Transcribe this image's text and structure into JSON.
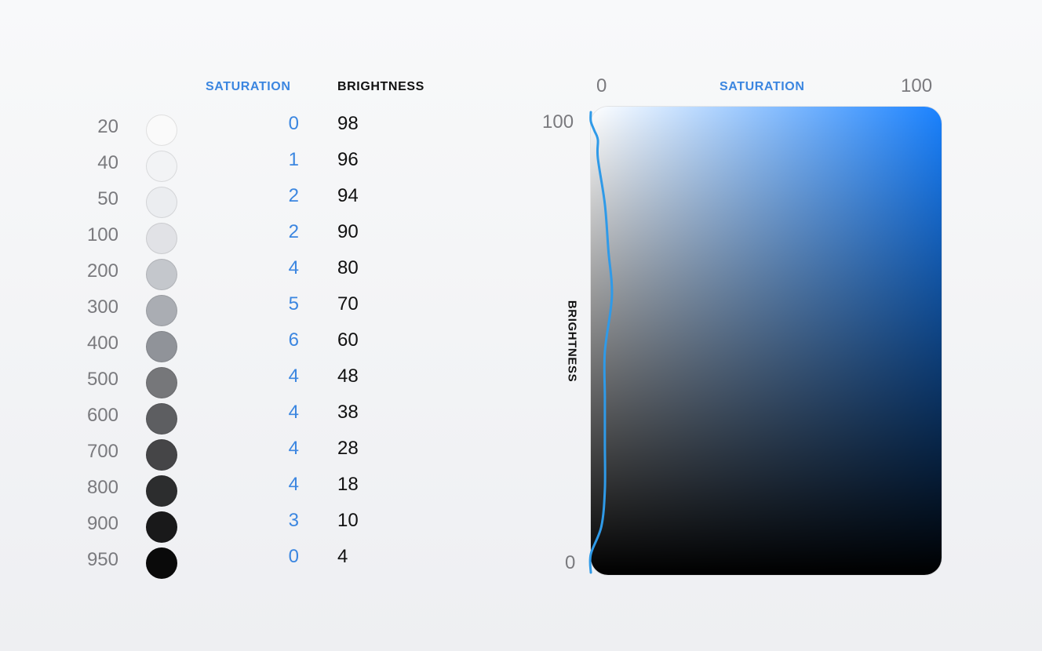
{
  "table": {
    "saturation_header": "SATURATION",
    "brightness_header": "BRIGHTNESS",
    "rows": [
      {
        "step": "20",
        "saturation": "0",
        "brightness": "98"
      },
      {
        "step": "40",
        "saturation": "1",
        "brightness": "96"
      },
      {
        "step": "50",
        "saturation": "2",
        "brightness": "94"
      },
      {
        "step": "100",
        "saturation": "2",
        "brightness": "90"
      },
      {
        "step": "200",
        "saturation": "4",
        "brightness": "80"
      },
      {
        "step": "300",
        "saturation": "5",
        "brightness": "70"
      },
      {
        "step": "400",
        "saturation": "6",
        "brightness": "60"
      },
      {
        "step": "500",
        "saturation": "4",
        "brightness": "48"
      },
      {
        "step": "600",
        "saturation": "4",
        "brightness": "38"
      },
      {
        "step": "700",
        "saturation": "4",
        "brightness": "28"
      },
      {
        "step": "800",
        "saturation": "4",
        "brightness": "18"
      },
      {
        "step": "900",
        "saturation": "3",
        "brightness": "10"
      },
      {
        "step": "950",
        "saturation": "0",
        "brightness": "4"
      }
    ]
  },
  "plot": {
    "x_label": "SATURATION",
    "y_label": "BRIGHTNESS",
    "x_min_label": "0",
    "x_max_label": "100",
    "y_max_label": "100",
    "y_min_label": "0",
    "xlim": [
      0,
      100
    ],
    "ylim": [
      0,
      100
    ],
    "curve_color": "#2f9ae8",
    "gradient_hue_color": "#1a82ff"
  },
  "colors": {
    "accent": "#3b86e0",
    "step_label": "#7a7a7e"
  }
}
